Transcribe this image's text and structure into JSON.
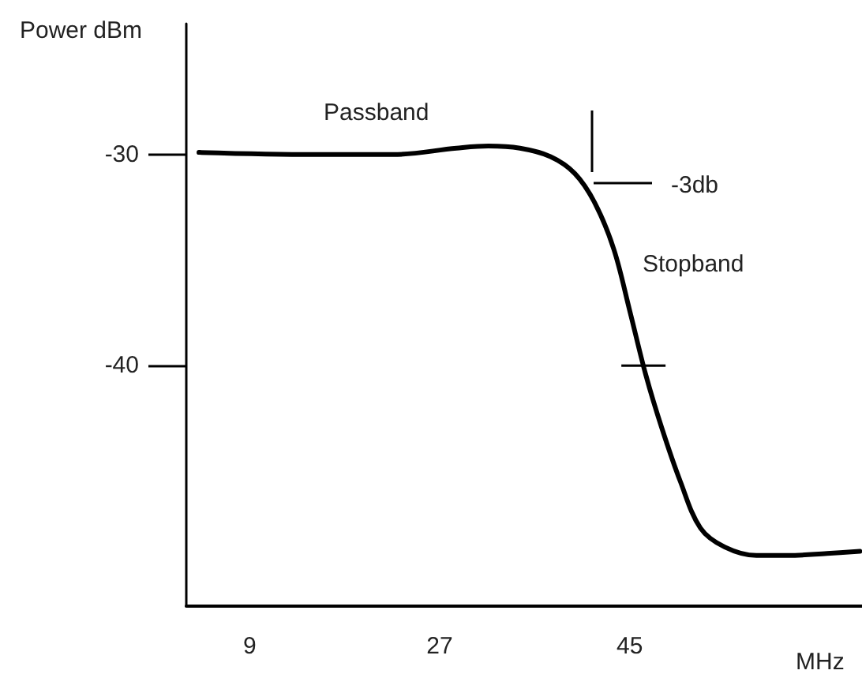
{
  "chart_data": {
    "type": "line",
    "ylabel": "Power dBm",
    "xlabel": "MHz",
    "x": [
      4.2,
      15.1,
      22.6,
      28.6,
      31.6,
      34.6,
      37.5,
      39.8,
      41.7,
      43.5,
      45,
      46.5,
      48,
      49.8,
      51.7,
      54,
      57,
      60,
      63.7,
      66.8
    ],
    "series": [
      {
        "color": "#000000",
        "values": [
          -29.9,
          -30,
          -30,
          -29.7,
          -29.6,
          -29.7,
          -30.1,
          -30.9,
          -32.3,
          -34.5,
          -37.4,
          -40.4,
          -42.9,
          -45.5,
          -47.7,
          -48.6,
          -49,
          -49,
          -48.9,
          -48.8
        ]
      }
    ],
    "xlim": [
      3,
      67
    ],
    "xticks": [
      9,
      27,
      45
    ],
    "ylim": [
      -51.4,
      -23.8
    ],
    "yticks": [
      -30,
      -40
    ],
    "annotations": [
      "Passband",
      "-3db",
      "Stopband"
    ],
    "grid": false,
    "marker": "none",
    "line_style": "solid"
  }
}
